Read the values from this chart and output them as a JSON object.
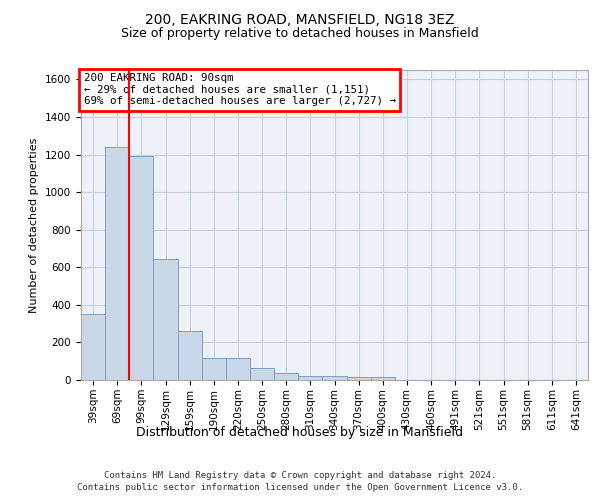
{
  "title_line1": "200, EAKRING ROAD, MANSFIELD, NG18 3EZ",
  "title_line2": "Size of property relative to detached houses in Mansfield",
  "xlabel": "Distribution of detached houses by size in Mansfield",
  "ylabel": "Number of detached properties",
  "footer1": "Contains HM Land Registry data © Crown copyright and database right 2024.",
  "footer2": "Contains public sector information licensed under the Open Government Licence v3.0.",
  "categories": [
    "39sqm",
    "69sqm",
    "99sqm",
    "129sqm",
    "159sqm",
    "190sqm",
    "220sqm",
    "250sqm",
    "280sqm",
    "310sqm",
    "340sqm",
    "370sqm",
    "400sqm",
    "430sqm",
    "460sqm",
    "491sqm",
    "521sqm",
    "551sqm",
    "581sqm",
    "611sqm",
    "641sqm"
  ],
  "values": [
    350,
    1240,
    1190,
    645,
    260,
    115,
    115,
    65,
    35,
    20,
    20,
    15,
    15,
    0,
    0,
    0,
    0,
    0,
    0,
    0,
    0
  ],
  "bar_color": "#c8d8e8",
  "bar_edge_color": "#7a9fc0",
  "grid_color": "#c8d0de",
  "background_color": "#eef2f8",
  "annotation_text": "200 EAKRING ROAD: 90sqm\n← 29% of detached houses are smaller (1,151)\n69% of semi-detached houses are larger (2,727) →",
  "annotation_box_color": "white",
  "annotation_box_edge_color": "red",
  "property_line_color": "red",
  "property_line_x": 1.5,
  "ylim": [
    0,
    1650
  ],
  "yticks": [
    0,
    200,
    400,
    600,
    800,
    1000,
    1200,
    1400,
    1600
  ],
  "title1_fontsize": 10,
  "title2_fontsize": 9,
  "ylabel_fontsize": 8,
  "xlabel_fontsize": 9,
  "tick_fontsize": 7.5,
  "footer_fontsize": 6.5
}
